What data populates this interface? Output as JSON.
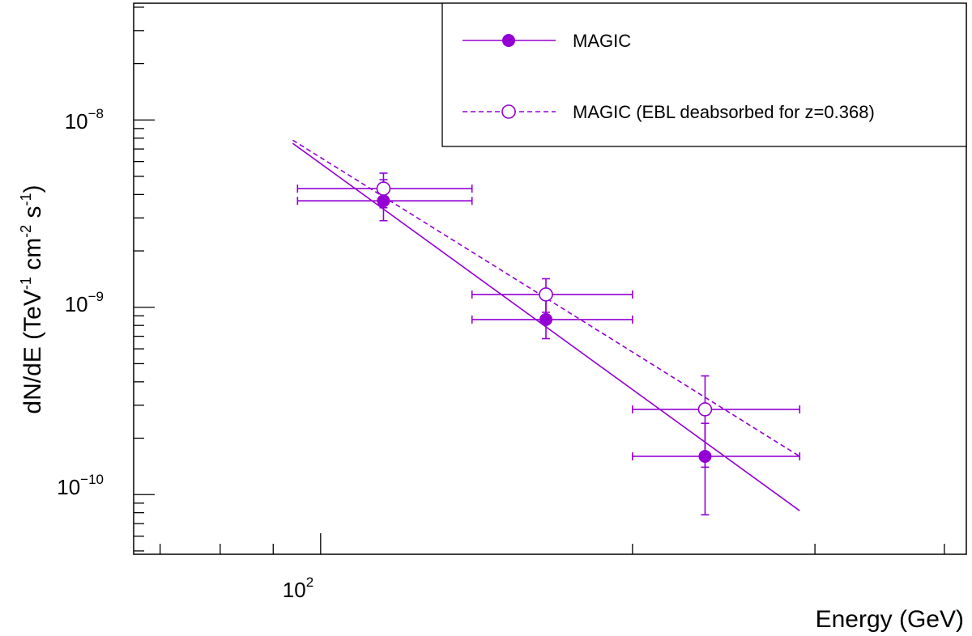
{
  "chart_data": {
    "type": "scatter",
    "title": "",
    "xlabel": "Energy (GeV)",
    "ylabel": {
      "main": "dN/dE (TeV",
      "e1": "-1",
      "p2": " cm",
      "e2": "-2",
      "p3": " s",
      "e3": "-1",
      "p4": ")"
    },
    "x_scale": "log",
    "y_scale": "log",
    "xlim": [
      66,
      420
    ],
    "ylim": [
      4.8e-11,
      4.2e-08
    ],
    "x_ticks": [
      {
        "base": "10",
        "exp": "2",
        "value": 100
      }
    ],
    "y_ticks": [
      {
        "base": "10",
        "exp": "−10",
        "value": 1e-10
      },
      {
        "base": "10",
        "exp": "−9",
        "value": 1e-09
      },
      {
        "base": "10",
        "exp": "−8",
        "value": 1e-08
      }
    ],
    "grid": false,
    "legend_position": "top-right",
    "color": "#9400D3",
    "series": [
      {
        "name": "MAGIC",
        "marker": "filled-circle",
        "line": "solid",
        "points": [
          {
            "x": 115,
            "xlo": 95,
            "xhi": 140,
            "y": 3.7e-09,
            "ylo": 2.9e-09,
            "yhi": 4.8e-09
          },
          {
            "x": 165,
            "xlo": 140,
            "xhi": 200,
            "y": 8.6e-10,
            "ylo": 6.8e-10,
            "yhi": 1.1e-09
          },
          {
            "x": 235,
            "xlo": 200,
            "xhi": 290,
            "y": 1.6e-10,
            "ylo": 7.8e-11,
            "yhi": 2.4e-10
          }
        ],
        "fit": {
          "x": [
            94,
            290
          ],
          "y": [
            7.5e-09,
            8.2e-11
          ]
        }
      },
      {
        "name": "MAGIC (EBL deabsorbed for z=0.368)",
        "marker": "open-circle",
        "line": "dashed",
        "points": [
          {
            "x": 115,
            "xlo": 95,
            "xhi": 140,
            "y": 4.3e-09,
            "ylo": 3.4e-09,
            "yhi": 5.2e-09
          },
          {
            "x": 165,
            "xlo": 140,
            "xhi": 200,
            "y": 1.17e-09,
            "ylo": 9.4e-10,
            "yhi": 1.42e-09
          },
          {
            "x": 235,
            "xlo": 200,
            "xhi": 290,
            "y": 2.85e-10,
            "ylo": 1.4e-10,
            "yhi": 4.3e-10
          }
        ],
        "fit": {
          "x": [
            94,
            290
          ],
          "y": [
            7.8e-09,
            1.6e-10
          ]
        }
      }
    ]
  }
}
